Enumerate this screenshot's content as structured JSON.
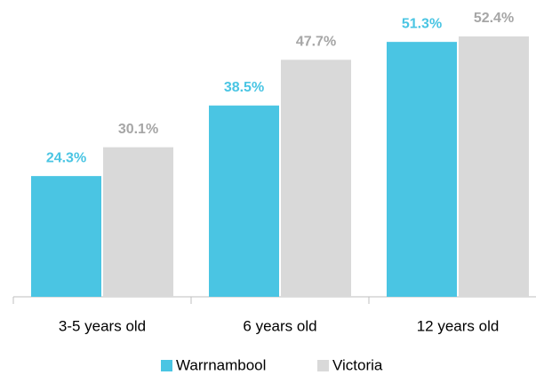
{
  "chart_data": {
    "type": "bar",
    "categories": [
      "3-5 years old",
      "6 years old",
      "12 years old"
    ],
    "series": [
      {
        "name": "Warrnambool",
        "color": "#4ac5e3",
        "label_color": "#4ac5e3",
        "values": [
          24.3,
          38.5,
          51.3
        ],
        "value_labels": [
          "24.3%",
          "38.5%",
          "51.3%"
        ]
      },
      {
        "name": "Victoria",
        "color": "#d9d9d9",
        "label_color": "#a6a6a6",
        "values": [
          30.1,
          47.7,
          52.4
        ],
        "value_labels": [
          "30.1%",
          "47.7%",
          "52.4%"
        ]
      }
    ],
    "legend": "bottom"
  }
}
